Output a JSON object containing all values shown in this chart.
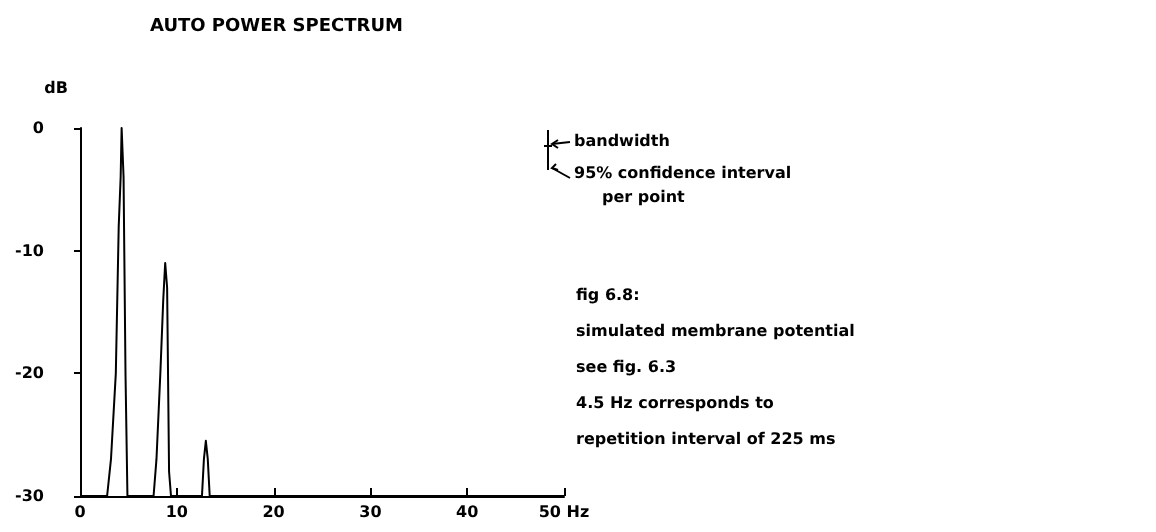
{
  "chart_data": {
    "type": "line",
    "title": "AUTO POWER SPECTRUM",
    "ylabel": "dB",
    "x": [
      0,
      2.8,
      3.2,
      3.7,
      4.0,
      4.2,
      4.3,
      4.5,
      4.7,
      4.9,
      7.6,
      7.9,
      8.3,
      8.6,
      8.8,
      9.0,
      9.2,
      9.4,
      12.6,
      12.8,
      13.0,
      13.2,
      13.4,
      50
    ],
    "series": [
      {
        "color": "#000000",
        "values": [
          -30,
          -30,
          -27,
          -20,
          -8,
          -4,
          0,
          -4,
          -20,
          -30,
          -30,
          -27,
          -20,
          -14,
          -11,
          -13,
          -28,
          -30,
          -30,
          -27,
          -25.5,
          -27,
          -30,
          -30
        ]
      }
    ],
    "xlim": [
      0,
      50
    ],
    "xticks": [
      0,
      10,
      20,
      30,
      40,
      {
        "value": 50,
        "label": "50 Hz"
      }
    ],
    "ylim": [
      -30,
      0
    ],
    "yticks": [
      -30,
      -20,
      -10,
      0
    ],
    "grid": false,
    "marker": "none",
    "line_style": "solid",
    "annotations": [
      "bandwidth",
      "95% confidence interval\nper point",
      "fig 6.8:",
      "simulated membrane potential",
      "see fig. 6.3",
      "4.5 Hz corresponds to",
      "repetition interval of 225 ms"
    ]
  }
}
